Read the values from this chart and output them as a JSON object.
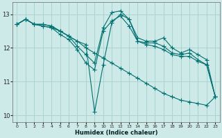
{
  "xlabel": "Humidex (Indice chaleur)",
  "bg_color": "#ceeae8",
  "grid_color": "#aad4d0",
  "line_color": "#007070",
  "xlim": [
    -0.5,
    23.5
  ],
  "ylim": [
    9.8,
    13.35
  ],
  "xticks": [
    0,
    1,
    2,
    3,
    4,
    5,
    6,
    7,
    8,
    9,
    10,
    11,
    12,
    13,
    14,
    15,
    16,
    17,
    18,
    19,
    20,
    21,
    22,
    23
  ],
  "yticks": [
    10,
    11,
    12,
    13
  ],
  "series": [
    [
      12.7,
      12.85,
      12.7,
      12.7,
      12.65,
      12.5,
      12.35,
      12.2,
      12.1,
      10.1,
      11.5,
      12.75,
      13.0,
      12.85,
      12.3,
      12.2,
      12.2,
      12.3,
      12.0,
      11.85,
      11.95,
      11.8,
      11.65,
      10.55
    ],
    [
      12.7,
      12.85,
      12.7,
      12.7,
      12.65,
      12.5,
      12.35,
      12.05,
      11.8,
      11.55,
      12.6,
      13.05,
      13.1,
      12.85,
      12.2,
      12.15,
      12.15,
      12.05,
      11.85,
      11.8,
      11.85,
      11.65,
      11.5,
      10.55
    ],
    [
      12.7,
      12.85,
      12.7,
      12.65,
      12.6,
      12.4,
      12.25,
      11.95,
      11.55,
      11.35,
      12.5,
      12.8,
      12.95,
      12.65,
      12.2,
      12.1,
      12.05,
      11.95,
      11.8,
      11.75,
      11.75,
      11.6,
      11.5,
      10.55
    ],
    [
      12.7,
      12.85,
      12.7,
      12.65,
      12.6,
      12.5,
      12.35,
      12.2,
      12.0,
      11.85,
      11.7,
      11.55,
      11.4,
      11.25,
      11.1,
      10.95,
      10.8,
      10.65,
      10.55,
      10.45,
      10.4,
      10.35,
      10.3,
      10.55
    ]
  ]
}
